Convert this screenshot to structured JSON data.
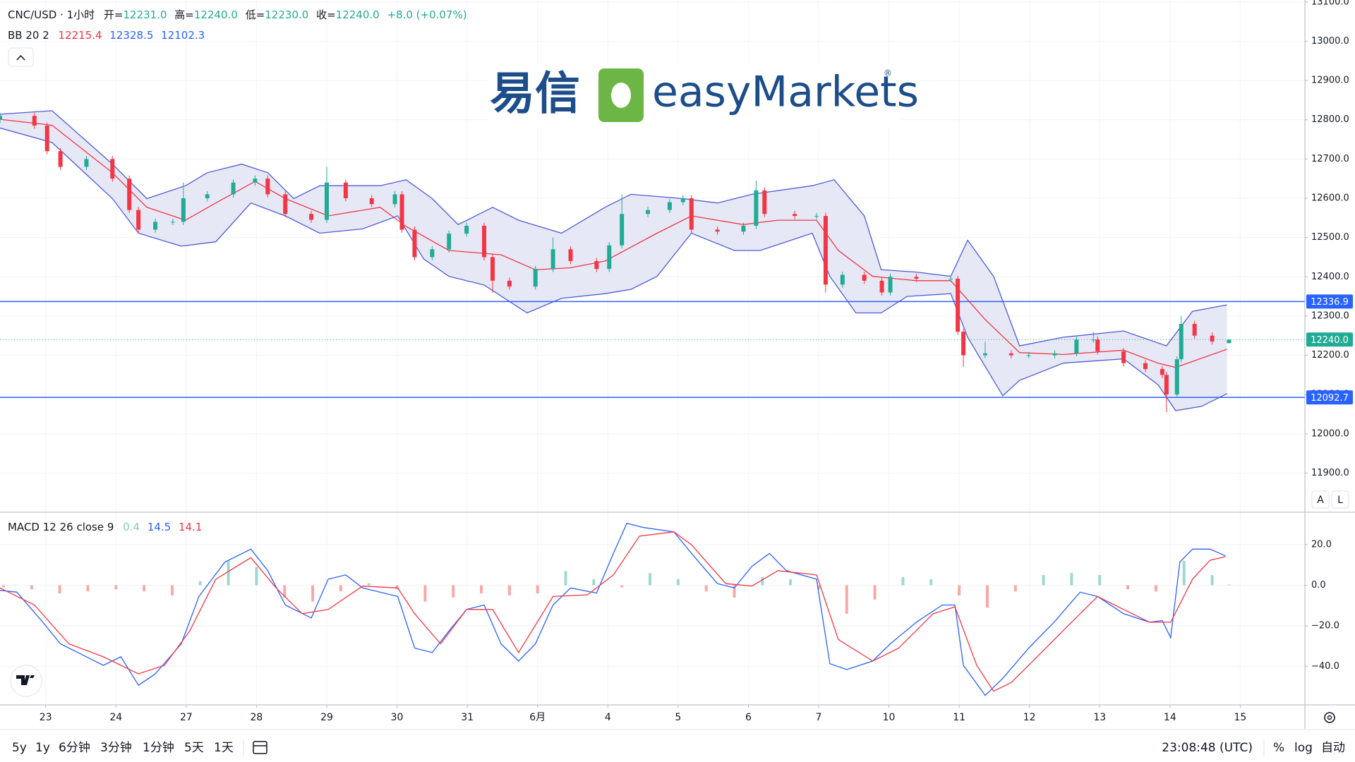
{
  "chart_data": [
    {
      "type": "candlestick",
      "title": "CNC/USD · 1小时",
      "ohlc_legend": [
        {
          "label": "开=",
          "value": "12231.0"
        },
        {
          "label": "高=",
          "value": "12240.0"
        },
        {
          "label": "低=",
          "value": "12230.0"
        },
        {
          "label": "收=",
          "value": "12240.0"
        }
      ],
      "change": "+8.0 (+0.07%)",
      "bb_legend": {
        "label": "BB 20 2",
        "values": [
          "12215.4",
          "12328.5",
          "12102.3"
        ],
        "colors": [
          "#f23645",
          "#2962ff",
          "#2962ff"
        ]
      },
      "candles": {
        "x": [
          -0.65,
          -0.16,
          0.02,
          0.21,
          0.58,
          0.95,
          1.19,
          1.32,
          1.56,
          1.81,
          1.96,
          2.3,
          2.67,
          2.98,
          3.16,
          3.41,
          3.78,
          4.0,
          4.27,
          4.64,
          4.97,
          5.07,
          5.25,
          5.5,
          5.74,
          5.99,
          6.24,
          6.36,
          6.6,
          6.97,
          7.22,
          7.47,
          7.84,
          8.02,
          8.2,
          8.57,
          8.88,
          9.07,
          9.19,
          9.56,
          9.93,
          10.11,
          10.23,
          10.66,
          10.97,
          11.1,
          11.34,
          11.65,
          11.9,
          12.02,
          12.39,
          12.88,
          12.98,
          13.06,
          13.37,
          13.74,
          13.99,
          14.36,
          14.67,
          14.91,
          14.97,
          15.34,
          15.65,
          15.89,
          15.95,
          16.1,
          16.16,
          16.35,
          16.6,
          16.84
        ],
        "open": [
          12800,
          12810,
          12785,
          12720,
          12680,
          12700,
          12650,
          12570,
          12520,
          12540,
          12540,
          12600,
          12610,
          12640,
          12650,
          12610,
          12560,
          12545,
          12640,
          12600,
          12585,
          12610,
          12520,
          12450,
          12470,
          12510,
          12530,
          12450,
          12390,
          12375,
          12420,
          12470,
          12440,
          12420,
          12480,
          12560,
          12570,
          12590,
          12600,
          12520,
          12515,
          12530,
          12620,
          12560,
          12555,
          12555,
          12380,
          12405,
          12390,
          12360,
          12400,
          12395,
          12395,
          12260,
          12200,
          12205,
          12200,
          12200,
          12205,
          12240,
          12240,
          12210,
          12180,
          12165,
          12150,
          12100,
          12190,
          12280,
          12250,
          12231
        ],
        "high": [
          12818,
          12818,
          12793,
          12728,
          12708,
          12708,
          12658,
          12578,
          12548,
          12548,
          12640,
          12618,
          12648,
          12658,
          12658,
          12618,
          12568,
          12680,
          12648,
          12608,
          12618,
          12618,
          12528,
          12478,
          12518,
          12538,
          12538,
          12458,
          12398,
          12428,
          12500,
          12478,
          12448,
          12488,
          12610,
          12578,
          12598,
          12608,
          12608,
          12528,
          12538,
          12645,
          12628,
          12568,
          12563,
          12563,
          12413,
          12413,
          12398,
          12408,
          12408,
          12403,
          12403,
          12268,
          12235,
          12213,
          12208,
          12213,
          12248,
          12260,
          12248,
          12218,
          12188,
          12173,
          12158,
          12198,
          12300,
          12288,
          12258,
          12240
        ],
        "low": [
          12792,
          12777,
          12712,
          12672,
          12672,
          12642,
          12562,
          12512,
          12512,
          12532,
          12532,
          12592,
          12602,
          12632,
          12602,
          12552,
          12537,
          12537,
          12592,
          12577,
          12577,
          12512,
          12442,
          12442,
          12462,
          12502,
          12442,
          12360,
          12367,
          12367,
          12412,
          12432,
          12412,
          12412,
          12472,
          12552,
          12562,
          12582,
          12512,
          12507,
          12507,
          12522,
          12552,
          12547,
          12547,
          12360,
          12372,
          12382,
          12352,
          12352,
          12387,
          12387,
          12252,
          12170,
          12192,
          12192,
          12192,
          12192,
          12197,
          12232,
          12202,
          12172,
          12157,
          12142,
          12055,
          12092,
          12182,
          12242,
          12227,
          12230
        ],
        "close": [
          12810,
          12785,
          12720,
          12680,
          12700,
          12650,
          12570,
          12520,
          12540,
          12540,
          12600,
          12610,
          12640,
          12650,
          12610,
          12560,
          12545,
          12640,
          12600,
          12585,
          12610,
          12520,
          12450,
          12470,
          12510,
          12530,
          12450,
          12390,
          12375,
          12420,
          12470,
          12440,
          12420,
          12480,
          12560,
          12570,
          12590,
          12600,
          12520,
          12515,
          12530,
          12620,
          12560,
          12555,
          12555,
          12380,
          12405,
          12390,
          12360,
          12400,
          12395,
          12395,
          12260,
          12200,
          12205,
          12200,
          12200,
          12205,
          12240,
          12240,
          12210,
          12180,
          12165,
          12150,
          12100,
          12190,
          12280,
          12250,
          12235,
          12240
        ],
        "up_color": "#22ab94",
        "down_color": "#f23645"
      },
      "bb_upper": {
        "x": [
          -0.65,
          0.09,
          0.95,
          1.44,
          1.99,
          2.3,
          2.79,
          3.16,
          3.53,
          3.9,
          4.27,
          4.76,
          5.13,
          5.5,
          5.87,
          6.36,
          6.73,
          7.34,
          7.96,
          8.33,
          9.07,
          9.56,
          10.05,
          10.91,
          11.22,
          11.65,
          11.89,
          12.39,
          12.88,
          13.12,
          13.49,
          13.86,
          14.48,
          15.34,
          15.95,
          16.32,
          16.81
        ],
        "values": [
          12814,
          12823,
          12687,
          12599,
          12632,
          12665,
          12687,
          12665,
          12599,
          12632,
          12632,
          12632,
          12647,
          12599,
          12533,
          12577,
          12544,
          12511,
          12577,
          12610,
          12599,
          12588,
          12610,
          12632,
          12647,
          12555,
          12418,
          12412,
          12401,
          12493,
          12401,
          12224,
          12246,
          12262,
          12224,
          12312,
          12328.5
        ],
        "color": "#4e5bd9"
      },
      "bb_middle": {
        "x": [
          -0.65,
          0.09,
          0.95,
          1.44,
          1.99,
          2.42,
          2.98,
          3.41,
          4.02,
          4.76,
          5.13,
          5.74,
          6.48,
          6.97,
          7.47,
          7.96,
          8.7,
          9.19,
          9.93,
          10.42,
          10.97,
          11.28,
          11.77,
          12.39,
          12.88,
          13.37,
          13.86,
          14.48,
          15.34,
          15.83,
          16.08,
          16.81
        ],
        "values": [
          12801,
          12786,
          12665,
          12577,
          12544,
          12588,
          12643,
          12599,
          12555,
          12577,
          12528,
          12467,
          12456,
          12418,
          12423,
          12440,
          12511,
          12555,
          12533,
          12544,
          12544,
          12467,
          12401,
          12390,
          12390,
          12291,
          12207,
          12202,
          12213,
          12180,
          12169,
          12215.4
        ],
        "color": "#f23645"
      },
      "bb_lower": {
        "x": [
          -0.65,
          0.09,
          0.95,
          1.32,
          1.93,
          2.42,
          2.92,
          3.41,
          3.9,
          4.51,
          5.01,
          5.38,
          5.74,
          6.24,
          6.85,
          7.34,
          7.96,
          8.33,
          8.7,
          9.19,
          9.8,
          10.17,
          10.91,
          11.16,
          11.53,
          11.89,
          12.26,
          12.88,
          13.12,
          13.62,
          13.86,
          14.48,
          15.34,
          15.83,
          16.08,
          16.45,
          16.81
        ],
        "values": [
          12779,
          12742,
          12599,
          12511,
          12478,
          12489,
          12588,
          12555,
          12511,
          12522,
          12555,
          12445,
          12401,
          12379,
          12308,
          12345,
          12357,
          12368,
          12401,
          12511,
          12467,
          12467,
          12511,
          12401,
          12308,
          12308,
          12350,
          12357,
          12246,
          12097,
          12136,
          12180,
          12191,
          12125,
          12059,
          12070,
          12102.3
        ],
        "color": "#4e5bd9"
      },
      "bb_fill": "#e3e4f4",
      "hlines": [
        12336.9,
        12092.7
      ],
      "hline_color": "#2962ff",
      "last_price": {
        "value": 12240,
        "label": "12240.0"
      },
      "last_color": "#22ab94",
      "xlim": [
        -0.65,
        17.92
      ],
      "ylim": [
        11802,
        13105
      ],
      "yticks": [
        {
          "value": 11900,
          "label": "11900.0"
        },
        {
          "value": 12000,
          "label": "12000.0"
        },
        {
          "value": 12100,
          "label": "12100.0"
        },
        {
          "value": 12200,
          "label": "12200.0"
        },
        {
          "value": 12300,
          "label": "12300.0"
        },
        {
          "value": 12400,
          "label": "12400.0"
        },
        {
          "value": 12500,
          "label": "12500.0"
        },
        {
          "value": 12600,
          "label": "12600.0"
        },
        {
          "value": 12700,
          "label": "12700.0"
        },
        {
          "value": 12800,
          "label": "12800.0"
        },
        {
          "value": 12900,
          "label": "12900.0"
        },
        {
          "value": 13000,
          "label": "13000.0"
        },
        {
          "value": 13100,
          "label": "13100.0"
        }
      ],
      "grid": true
    },
    {
      "type": "macd",
      "legend": {
        "label": "MACD 12 26 close 9",
        "values": [
          "0.4",
          "14.5",
          "14.1"
        ],
        "colors": [
          "#80cbc4",
          "#2962ff",
          "#f23645"
        ]
      },
      "histogram": {
        "x": [
          -0.6,
          -0.2,
          0.2,
          0.6,
          1,
          1.4,
          1.8,
          2.2,
          2.6,
          3,
          3.4,
          3.8,
          4.2,
          4.6,
          5,
          5.4,
          5.8,
          6.2,
          6.6,
          7,
          7.4,
          7.8,
          8.2,
          8.6,
          9,
          9.4,
          9.8,
          10.2,
          10.6,
          11,
          11.4,
          11.8,
          12.2,
          12.6,
          13,
          13.4,
          13.8,
          14.2,
          14.6,
          15,
          15.4,
          15.8,
          16.2,
          16.6,
          16.84
        ],
        "values": [
          -1,
          -2,
          -4,
          -3,
          -2,
          -3,
          -5,
          2,
          12,
          9,
          -6,
          -8,
          -3,
          1,
          -2,
          -8,
          -6,
          -4,
          -5,
          -4,
          7,
          3,
          -1,
          6,
          3,
          -3,
          -6,
          4,
          3,
          -2,
          -14,
          -7,
          4,
          3,
          -5,
          -11,
          -3,
          5,
          6,
          5,
          -2,
          -3,
          12,
          5,
          0.4
        ],
        "up_color": "#9fd8d1",
        "down_color": "#f7a9a7"
      },
      "macd": {
        "x": [
          -0.65,
          -0.41,
          -0.04,
          0.21,
          0.58,
          0.82,
          1.07,
          1.32,
          1.56,
          1.93,
          2.18,
          2.55,
          2.92,
          3.16,
          3.41,
          3.78,
          4.02,
          4.27,
          4.51,
          5.01,
          5.25,
          5.5,
          5.74,
          5.99,
          6.24,
          6.48,
          6.73,
          6.97,
          7.22,
          7.47,
          7.84,
          8.08,
          8.27,
          8.51,
          8.94,
          9.19,
          9.56,
          9.8,
          10.05,
          10.3,
          10.54,
          10.97,
          11.16,
          11.4,
          11.77,
          12.02,
          12.39,
          12.76,
          12.94,
          13.06,
          13.37,
          13.62,
          13.99,
          14.35,
          14.72,
          14.97,
          15.34,
          15.71,
          15.89,
          16.01,
          16.14,
          16.32,
          16.57,
          16.79
        ],
        "values": [
          -2.5,
          -3.4,
          -18.2,
          -28.8,
          -35.2,
          -39.4,
          -35.2,
          -49.2,
          -43.6,
          -28.8,
          -5.5,
          11.4,
          17.8,
          7.2,
          -9.7,
          -16.1,
          3.0,
          5.1,
          -1.3,
          -5.5,
          -30.9,
          -33.1,
          -22.5,
          -11.9,
          -9.7,
          -28.8,
          -37.3,
          -28.8,
          -9.7,
          -1.3,
          -3.8,
          15.7,
          30.5,
          28.4,
          26.3,
          15.7,
          0.8,
          -1.3,
          9.3,
          15.7,
          7.2,
          3.0,
          -38.6,
          -41.5,
          -37.3,
          -28.8,
          -18.2,
          -9.7,
          -9.7,
          -39.4,
          -54.2,
          -45.8,
          -30.9,
          -18.2,
          -3.4,
          -5.5,
          -14.0,
          -18.2,
          -17.4,
          -25.8,
          11.4,
          17.8,
          17.8,
          14.5
        ],
        "color": "#2962ff"
      },
      "signal": {
        "x": [
          -0.65,
          -0.16,
          0.33,
          0.82,
          1.32,
          1.69,
          2.05,
          2.42,
          2.92,
          3.28,
          3.65,
          4.02,
          4.51,
          5.01,
          5.25,
          5.62,
          5.99,
          6.36,
          6.73,
          7.22,
          7.71,
          8.08,
          8.45,
          8.94,
          9.19,
          9.68,
          10.05,
          10.42,
          10.97,
          11.28,
          11.77,
          12.14,
          12.63,
          12.94,
          13.25,
          13.49,
          13.74,
          14.11,
          14.6,
          14.97,
          15.34,
          15.71,
          16.01,
          16.32,
          16.57,
          16.79
        ],
        "values": [
          -1.3,
          -9.7,
          -28.8,
          -35.2,
          -43.6,
          -39.4,
          -22.5,
          3.0,
          13.6,
          -1.3,
          -14.0,
          -11.9,
          -0.4,
          -1.3,
          -14.0,
          -28.8,
          -11.9,
          -11.9,
          -33.1,
          -5.5,
          -4.7,
          5.1,
          24.2,
          26.3,
          19.9,
          0.8,
          -0.4,
          7.2,
          5.1,
          -26.7,
          -37.3,
          -30.9,
          -14.0,
          -10.6,
          -39.4,
          -52.1,
          -47.9,
          -35.2,
          -18.2,
          -5.5,
          -11.9,
          -18.2,
          -18.2,
          3.0,
          12.3,
          14.1
        ],
        "color": "#f23645"
      },
      "xlim": [
        -0.65,
        17.92
      ],
      "ylim": [
        -58.5,
        35.6
      ],
      "yticks": [
        {
          "value": 20,
          "label": "20.0"
        },
        {
          "value": 0,
          "label": "0.0"
        },
        {
          "value": -20,
          "label": "−20.0"
        },
        {
          "value": -40,
          "label": "−40.0"
        }
      ],
      "xticks": [
        {
          "value": 0,
          "label": "23"
        },
        {
          "value": 1,
          "label": "24"
        },
        {
          "value": 2,
          "label": "27"
        },
        {
          "value": 3,
          "label": "28"
        },
        {
          "value": 4,
          "label": "29"
        },
        {
          "value": 5,
          "label": "30"
        },
        {
          "value": 6,
          "label": "31"
        },
        {
          "value": 7,
          "label": "6月"
        },
        {
          "value": 8,
          "label": "4"
        },
        {
          "value": 9,
          "label": "5"
        },
        {
          "value": 10,
          "label": "6"
        },
        {
          "value": 11,
          "label": "7"
        },
        {
          "value": 12,
          "label": "10"
        },
        {
          "value": 13,
          "label": "11"
        },
        {
          "value": 14,
          "label": "12"
        },
        {
          "value": 15,
          "label": "13"
        },
        {
          "value": 16,
          "label": "14"
        },
        {
          "value": 17,
          "label": "15"
        }
      ],
      "grid": true
    }
  ],
  "logo": {
    "chinese": "易信",
    "brand": "easyMarkets",
    "mark": "®"
  },
  "toolbar": {
    "ranges": [
      "5y",
      "1y",
      "6分钟",
      "3分钟",
      "1分钟",
      "5天",
      "1天"
    ],
    "clock": "23:08:48 (UTC)",
    "options": [
      "%",
      "log",
      "自动"
    ]
  },
  "scale_buttons": [
    "A",
    "L"
  ]
}
